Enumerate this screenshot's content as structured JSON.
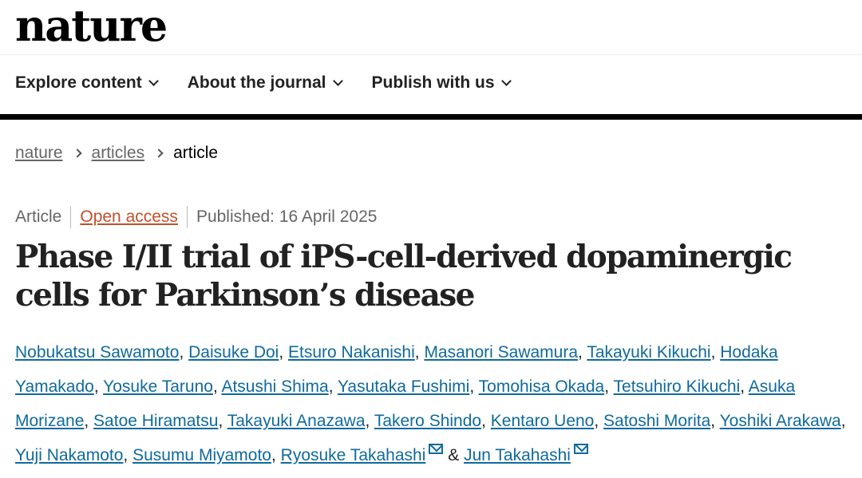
{
  "header": {
    "logo": "nature",
    "nav": [
      "Explore content",
      "About the journal",
      "Publish with us"
    ]
  },
  "breadcrumb": {
    "items": [
      "nature",
      "articles"
    ],
    "current": "article"
  },
  "meta": {
    "type": "Article",
    "access": "Open access",
    "published": "Published: 16 April 2025"
  },
  "title": "Phase I/II trial of iPS-cell-derived dopaminergic cells for Parkinson’s disease",
  "authors": [
    "Nobukatsu Sawamoto",
    "Daisuke Doi",
    "Etsuro Nakanishi",
    "Masanori Sawamura",
    "Takayuki Kikuchi",
    "Hodaka Yamakado",
    "Yosuke Taruno",
    "Atsushi Shima",
    "Yasutaka Fushimi",
    "Tomohisa Okada",
    "Tetsuhiro Kikuchi",
    "Asuka Morizane",
    "Satoe Hiramatsu",
    "Takayuki Anazawa",
    "Takero Shindo",
    "Kentaro Ueno",
    "Satoshi Morita",
    "Yoshiki Arakawa",
    "Yuji Nakamoto",
    "Susumu Miyamoto",
    "Ryosuke Takahashi",
    "Jun Takahashi"
  ],
  "corresponding": [
    "Ryosuke Takahashi",
    "Jun Takahashi"
  ],
  "colors": {
    "link": "#0f6a9e",
    "open_access": "#c0502a"
  }
}
